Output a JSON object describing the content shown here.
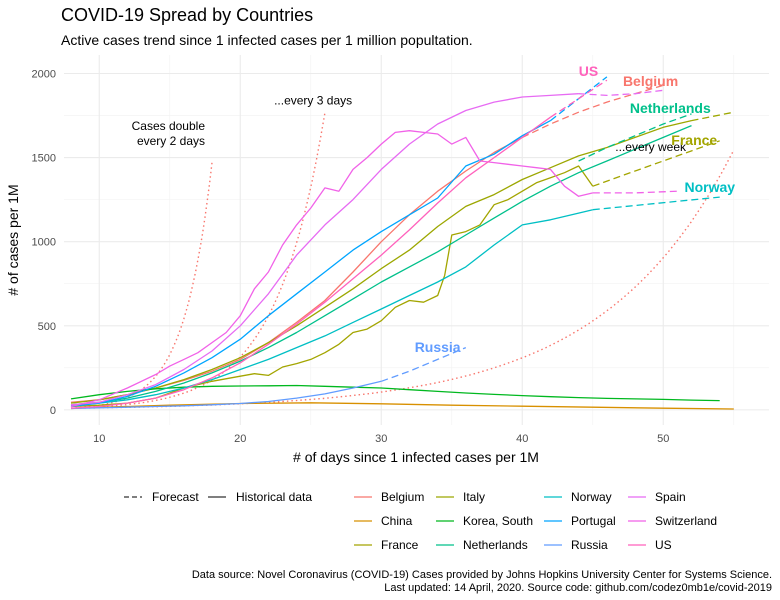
{
  "title": "COVID-19 Spread by Countries",
  "subtitle": "Active cases trend since 1 infected cases per 1 million popultation.",
  "caption": {
    "line1": "Data source: Novel Coronavirus (COVID-19) Cases provided by Johns Hopkins University Center for Systems Science.",
    "line2": "Last updated: 14 April, 2020. Source code: github.com/codez0mb1e/covid-2019"
  },
  "chart_data": {
    "type": "line",
    "xlabel": "# of days since 1 infected cases per 1M",
    "ylabel": "# of cases per 1M",
    "xlim": [
      7.5,
      57.5
    ],
    "ylim": [
      -90,
      2110
    ],
    "x_ticks": [
      10,
      20,
      30,
      40,
      50
    ],
    "y_ticks": [
      0,
      500,
      1000,
      1500,
      2000
    ],
    "grid": true,
    "legend_position": "bottom",
    "linetype_legend": [
      {
        "label": "Forecast",
        "style": "dashed"
      },
      {
        "label": "Historical data",
        "style": "solid"
      }
    ],
    "colors": {
      "Belgium": "#F8766D",
      "China": "#D89000",
      "France": "#A3A500",
      "Italy": "#9CA700",
      "Korea, South": "#00B81F",
      "Netherlands": "#00C08B",
      "Norway": "#00BFC4",
      "Portugal": "#00A5FF",
      "Russia": "#619CFF",
      "Spain": "#E76BF3",
      "Switzerland": "#F162E8",
      "US": "#FF62BC"
    },
    "series": [
      {
        "name": "Belgium",
        "x": [
          8,
          10,
          12,
          14,
          16,
          18,
          20,
          22,
          24,
          26,
          28,
          30,
          32,
          34,
          36,
          38,
          40
        ],
        "y": [
          45,
          60,
          90,
          130,
          175,
          230,
          300,
          400,
          520,
          650,
          820,
          1000,
          1160,
          1300,
          1420,
          1530,
          1620
        ],
        "forecast": {
          "x": [
            40,
            42,
            44,
            46,
            48,
            50
          ],
          "y": [
            1620,
            1700,
            1770,
            1830,
            1880,
            1930
          ]
        }
      },
      {
        "name": "China",
        "x": [
          8,
          10,
          15,
          20,
          25,
          30,
          35,
          40,
          45,
          50,
          55
        ],
        "y": [
          8,
          15,
          28,
          38,
          42,
          36,
          28,
          22,
          16,
          10,
          5
        ]
      },
      {
        "name": "France",
        "x": [
          8,
          10,
          12,
          14,
          16,
          18,
          20,
          21,
          22,
          23,
          24,
          25,
          26,
          27,
          28,
          29,
          30,
          31,
          32,
          33,
          34,
          34.5,
          35,
          36,
          37,
          38,
          39,
          40,
          41,
          42,
          43,
          44,
          45
        ],
        "y": [
          20,
          28,
          40,
          70,
          130,
          170,
          200,
          215,
          205,
          255,
          275,
          300,
          340,
          390,
          460,
          480,
          530,
          610,
          650,
          640,
          680,
          800,
          1040,
          1060,
          1100,
          1220,
          1250,
          1300,
          1350,
          1380,
          1410,
          1450,
          1330
        ],
        "forecast": {
          "x": [
            45,
            48,
            51,
            54
          ],
          "y": [
            1330,
            1420,
            1510,
            1600
          ]
        }
      },
      {
        "name": "Italy",
        "x": [
          8,
          10,
          12,
          14,
          16,
          18,
          20,
          22,
          24,
          26,
          28,
          30,
          32,
          34,
          36,
          38,
          40,
          42,
          44,
          46,
          48,
          50,
          52
        ],
        "y": [
          40,
          60,
          90,
          130,
          180,
          240,
          310,
          400,
          500,
          610,
          720,
          840,
          950,
          1090,
          1210,
          1280,
          1370,
          1440,
          1510,
          1560,
          1620,
          1680,
          1720
        ],
        "forecast": {
          "x": [
            52,
            55
          ],
          "y": [
            1720,
            1770
          ]
        }
      },
      {
        "name": "Korea, South",
        "x": [
          8,
          10,
          12,
          14,
          16,
          18,
          20,
          22,
          24,
          26,
          28,
          30,
          32,
          34,
          36,
          38,
          40,
          42,
          44,
          46,
          48,
          50,
          52,
          54
        ],
        "y": [
          65,
          90,
          110,
          125,
          135,
          140,
          142,
          143,
          145,
          140,
          135,
          130,
          120,
          110,
          100,
          92,
          85,
          78,
          73,
          68,
          65,
          62,
          58,
          55
        ]
      },
      {
        "name": "Netherlands",
        "x": [
          8,
          10,
          12,
          14,
          16,
          18,
          20,
          22,
          24,
          26,
          28,
          30,
          32,
          34,
          36,
          38,
          40,
          42,
          44,
          46,
          48,
          50,
          52
        ],
        "y": [
          30,
          45,
          70,
          110,
          160,
          220,
          290,
          370,
          460,
          560,
          660,
          760,
          850,
          940,
          1040,
          1140,
          1240,
          1330,
          1410,
          1480,
          1550,
          1620,
          1690
        ],
        "forecast": {
          "x": [
            44,
            46,
            48,
            50,
            52
          ],
          "y": [
            1480,
            1560,
            1630,
            1700,
            1760
          ]
        }
      },
      {
        "name": "Norway",
        "x": [
          8,
          10,
          12,
          14,
          16,
          18,
          20,
          22,
          24,
          26,
          28,
          30,
          32,
          34,
          36,
          38,
          40,
          42,
          44,
          45
        ],
        "y": [
          25,
          40,
          60,
          90,
          130,
          180,
          240,
          300,
          370,
          440,
          520,
          600,
          680,
          760,
          850,
          980,
          1100,
          1130,
          1170,
          1190
        ],
        "forecast": {
          "x": [
            45,
            48,
            51,
            54
          ],
          "y": [
            1190,
            1215,
            1240,
            1265
          ]
        }
      },
      {
        "name": "Portugal",
        "x": [
          8,
          10,
          12,
          14,
          16,
          18,
          20,
          22,
          24,
          26,
          28,
          30,
          32,
          34,
          36,
          38,
          40,
          42
        ],
        "y": [
          20,
          40,
          80,
          140,
          220,
          310,
          420,
          560,
          690,
          820,
          950,
          1060,
          1160,
          1260,
          1450,
          1520,
          1630,
          1720
        ],
        "forecast": {
          "x": [
            42,
            44,
            46
          ],
          "y": [
            1720,
            1850,
            1980
          ]
        }
      },
      {
        "name": "Russia",
        "x": [
          8,
          10,
          12,
          14,
          16,
          18,
          20,
          22,
          24,
          26,
          28,
          30
        ],
        "y": [
          8,
          12,
          16,
          20,
          24,
          30,
          38,
          50,
          70,
          95,
          130,
          170
        ],
        "forecast": {
          "x": [
            30,
            32,
            34,
            36
          ],
          "y": [
            170,
            230,
            300,
            370
          ]
        }
      },
      {
        "name": "Spain",
        "x": [
          8,
          10,
          12,
          14,
          16,
          18,
          20,
          22,
          24,
          26,
          28,
          30,
          32,
          34,
          36,
          38,
          40,
          42,
          44
        ],
        "y": [
          30,
          45,
          90,
          150,
          240,
          350,
          500,
          690,
          920,
          1100,
          1250,
          1430,
          1580,
          1700,
          1780,
          1830,
          1860,
          1870,
          1880
        ],
        "forecast": {
          "x": [
            44,
            46,
            48,
            50
          ],
          "y": [
            1880,
            1870,
            1880,
            1900
          ]
        }
      },
      {
        "name": "Switzerland",
        "x": [
          8,
          10,
          12,
          14,
          15,
          16,
          17,
          18,
          19,
          20,
          21,
          22,
          23,
          24,
          25,
          26,
          27,
          28,
          29,
          30,
          31,
          32,
          33,
          34,
          35,
          36,
          37,
          38,
          39,
          40,
          41,
          42,
          43,
          44,
          45
        ],
        "y": [
          20,
          60,
          130,
          210,
          260,
          300,
          340,
          400,
          460,
          560,
          720,
          820,
          980,
          1100,
          1200,
          1320,
          1300,
          1430,
          1500,
          1580,
          1650,
          1660,
          1650,
          1640,
          1580,
          1620,
          1480,
          1470,
          1460,
          1450,
          1440,
          1430,
          1330,
          1270,
          1290
        ],
        "forecast": {
          "x": [
            45,
            48,
            51
          ],
          "y": [
            1290,
            1290,
            1300
          ]
        }
      },
      {
        "name": "US",
        "x": [
          8,
          10,
          12,
          14,
          16,
          18,
          20,
          22,
          24,
          26,
          28,
          30,
          32,
          34,
          36,
          38,
          40,
          42
        ],
        "y": [
          10,
          20,
          40,
          70,
          120,
          190,
          280,
          390,
          510,
          640,
          780,
          920,
          1070,
          1230,
          1380,
          1500,
          1620,
          1740
        ],
        "forecast": {
          "x": [
            42,
            44,
            46
          ],
          "y": [
            1740,
            1850,
            1960
          ]
        }
      }
    ],
    "reference_lines": [
      {
        "label": "Cases double every 2 days",
        "x_start": 8,
        "x_end": 18
      },
      {
        "label": "...every 3 days",
        "x_start": 8,
        "x_end": 26
      },
      {
        "label": "...every week",
        "x_start": 8,
        "x_end": 55
      }
    ],
    "annotations": [
      {
        "text": "Cases double",
        "x": 17.5,
        "y": 1665,
        "align": "end"
      },
      {
        "text": "every 2 days",
        "x": 17.5,
        "y": 1575,
        "align": "end"
      },
      {
        "text": "...every 3 days",
        "x": 22.4,
        "y": 1815,
        "align": "start"
      },
      {
        "text": "...every week",
        "x": 46.6,
        "y": 1540,
        "align": "start"
      }
    ],
    "country_labels": [
      {
        "text": "US",
        "series": "US",
        "x": 44.7,
        "y": 1985
      },
      {
        "text": "Belgium",
        "series": "Belgium",
        "x": 49.1,
        "y": 1925
      },
      {
        "text": "Netherlands",
        "series": "Netherlands",
        "x": 50.5,
        "y": 1765
      },
      {
        "text": "France",
        "series": "France",
        "x": 52.2,
        "y": 1575
      },
      {
        "text": "Norway",
        "series": "Norway",
        "x": 53.3,
        "y": 1295
      },
      {
        "text": "Russia",
        "series": "Russia",
        "x": 34,
        "y": 345
      }
    ],
    "legend": {
      "entries": [
        [
          "Belgium",
          "China",
          "France"
        ],
        [
          "Italy",
          "Korea, South",
          "Netherlands"
        ],
        [
          "Norway",
          "Portugal",
          "Russia"
        ],
        [
          "Spain",
          "Switzerland",
          "US"
        ]
      ]
    }
  }
}
